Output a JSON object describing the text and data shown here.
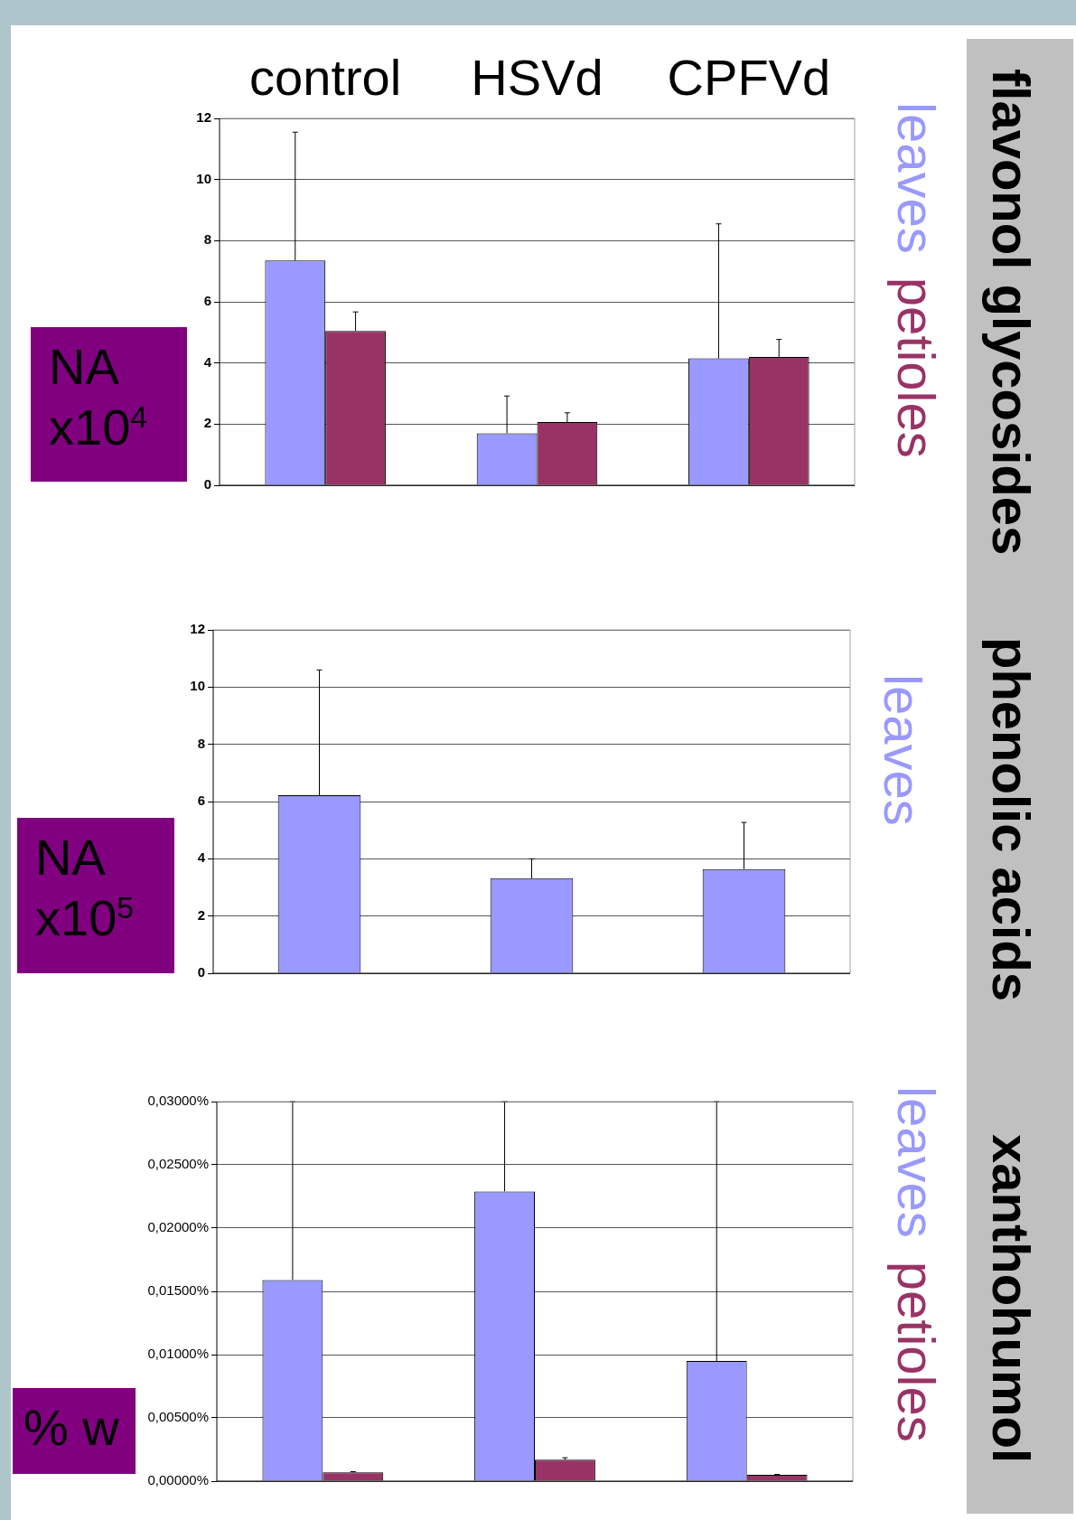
{
  "chart_data": [
    {
      "type": "bar",
      "y2label": "flavonol glycosides",
      "ylabel": "NA x10$^{4}$",
      "categories": [
        "control",
        "HSVd",
        "CPFVd"
      ],
      "series": [
        {
          "name": "leaves",
          "color": "#9999ff",
          "values": [
            7.35,
            1.7,
            4.15
          ],
          "errors": [
            [
              7.35,
              11.55
            ],
            [
              1.7,
              2.92
            ],
            [
              4.15,
              8.55
            ]
          ]
        },
        {
          "name": "petioles",
          "color": "#993366",
          "values": [
            5.05,
            2.07,
            4.2
          ],
          "errors": [
            [
              5.05,
              5.67
            ],
            [
              2.07,
              2.37
            ],
            [
              4.2,
              4.77
            ]
          ]
        }
      ],
      "ylim": [
        0,
        12
      ],
      "yticks": [
        0,
        2,
        4,
        6,
        8,
        10,
        12
      ],
      "grid": "y",
      "legend": "right"
    },
    {
      "type": "bar",
      "y2label": "phenolic acids",
      "ylabel": "NA x10$^{5}$",
      "categories": [
        null,
        null,
        null
      ],
      "series": [
        {
          "name": "leaves",
          "color": "#9999ff",
          "values": [
            6.22,
            3.32,
            3.64
          ],
          "errors": [
            [
              6.22,
              10.6
            ],
            [
              3.32,
              4.0
            ],
            [
              3.64,
              5.27
            ]
          ]
        }
      ],
      "ylim": [
        0,
        12
      ],
      "yticks": [
        0,
        2,
        4,
        6,
        8,
        10,
        12
      ],
      "grid": "y",
      "legend": "right",
      "tick_labels": "y"
    },
    {
      "type": "bar",
      "y2label": "xanthohumol",
      "ylabel": "% w",
      "categories": [
        null,
        null,
        null
      ],
      "series": [
        {
          "name": "leaves",
          "color": "#9999ff",
          "values": [
            0.0159,
            0.0229,
            0.0095
          ],
          "errors": [
            [
              0.0159,
              0.03
            ],
            [
              0.0229,
              0.03
            ],
            [
              0.0095,
              0.03
            ]
          ]
        },
        {
          "name": "petioles",
          "color": "#993366",
          "values": [
            0.0007,
            0.0017,
            0.0005
          ],
          "errors": [
            [
              0.0007,
              0.00075
            ],
            [
              0.0017,
              0.00185
            ],
            [
              0.0005,
              0.00053
            ]
          ]
        }
      ],
      "ylim": [
        0,
        0.03
      ],
      "yticks": [
        {
          "value": 0,
          "label": "0,00000%"
        },
        {
          "value": 0.005,
          "label": "0,00500%"
        },
        {
          "value": 0.01,
          "label": "0,01000%"
        },
        {
          "value": 0.015,
          "label": "0,01500%"
        },
        {
          "value": 0.02,
          "label": "0,02000%"
        },
        {
          "value": 0.025,
          "label": "0,02500%"
        },
        {
          "value": 0.03,
          "label": "0,03000%"
        }
      ],
      "grid": "y",
      "legend": "right",
      "tick_labels": "y"
    }
  ]
}
